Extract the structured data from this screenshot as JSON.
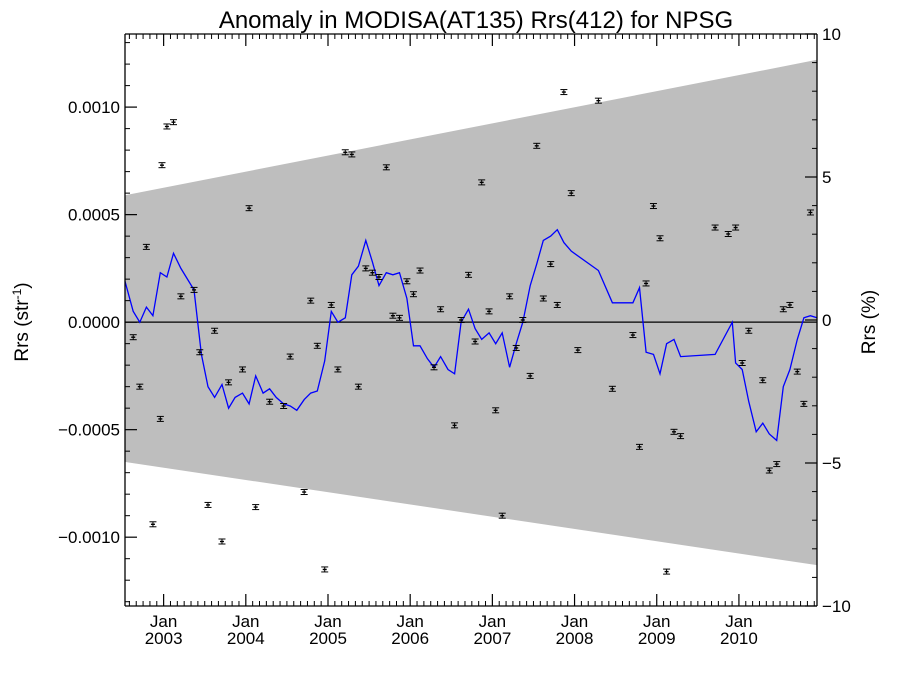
{
  "chart_data": {
    "type": "scatter",
    "title": "Anomaly in MODISA(AT135) Rrs(412) for NPSG",
    "ylabel": "Rrs (str",
    "ylabel_sup": "-1",
    "ylabel_close": ")",
    "y2label": "Rrs (%)",
    "xlim": [
      2002.53,
      2010.95
    ],
    "ylim": [
      -0.00132,
      0.00134
    ],
    "y2lim": [
      -10,
      10
    ],
    "y_ticks": [
      {
        "value": 0.001,
        "label": "0.0010"
      },
      {
        "value": 0.0005,
        "label": "0.0005"
      },
      {
        "value": 0.0,
        "label": "0.0000"
      },
      {
        "value": -0.0005,
        "label": "−0.0005"
      },
      {
        "value": -0.001,
        "label": "−0.0010"
      }
    ],
    "y2_ticks": [
      {
        "value": 10,
        "label": "10"
      },
      {
        "value": 5,
        "label": "5"
      },
      {
        "value": 0,
        "label": "0"
      },
      {
        "value": -5,
        "label": "−5"
      },
      {
        "value": -10,
        "label": "−10"
      }
    ],
    "x_ticks": [
      {
        "value": 2003.0,
        "month": "Jan",
        "year": "2003"
      },
      {
        "value": 2004.0,
        "month": "Jan",
        "year": "2004"
      },
      {
        "value": 2005.0,
        "month": "Jan",
        "year": "2005"
      },
      {
        "value": 2006.0,
        "month": "Jan",
        "year": "2006"
      },
      {
        "value": 2007.0,
        "month": "Jan",
        "year": "2007"
      },
      {
        "value": 2008.0,
        "month": "Jan",
        "year": "2008"
      },
      {
        "value": 2009.0,
        "month": "Jan",
        "year": "2009"
      },
      {
        "value": 2010.0,
        "month": "Jan",
        "year": "2010"
      }
    ],
    "band": {
      "x": [
        2002.53,
        2010.95
      ],
      "upper": [
        0.00059,
        0.00122
      ],
      "lower": [
        -0.00065,
        -0.00113
      ],
      "color": "#bebebe"
    },
    "zero_line": 0.0,
    "series": [
      {
        "kind": "points",
        "color": "#000000",
        "points": [
          [
            2002.63,
            -7e-05
          ],
          [
            2002.71,
            -0.0003
          ],
          [
            2002.79,
            0.00035
          ],
          [
            2002.87,
            -0.00094
          ],
          [
            2002.96,
            -0.00045
          ],
          [
            2002.98,
            0.00073
          ],
          [
            2003.04,
            0.00091
          ],
          [
            2003.12,
            0.00093
          ],
          [
            2003.21,
            0.00012
          ],
          [
            2003.37,
            0.00015
          ],
          [
            2003.44,
            -0.00014
          ],
          [
            2003.54,
            -0.00085
          ],
          [
            2003.62,
            -4e-05
          ],
          [
            2003.71,
            -0.00102
          ],
          [
            2003.79,
            -0.00028
          ],
          [
            2003.96,
            -0.00022
          ],
          [
            2004.04,
            0.00053
          ],
          [
            2004.12,
            -0.00086
          ],
          [
            2004.29,
            -0.00037
          ],
          [
            2004.46,
            -0.00039
          ],
          [
            2004.54,
            -0.00016
          ],
          [
            2004.71,
            -0.00079
          ],
          [
            2004.79,
            0.0001
          ],
          [
            2004.87,
            -0.00011
          ],
          [
            2004.96,
            -0.00115
          ],
          [
            2005.04,
            8e-05
          ],
          [
            2005.12,
            -0.00022
          ],
          [
            2005.21,
            0.00079
          ],
          [
            2005.29,
            0.00078
          ],
          [
            2005.37,
            -0.0003
          ],
          [
            2005.46,
            0.00025
          ],
          [
            2005.54,
            0.00023
          ],
          [
            2005.62,
            0.00021
          ],
          [
            2005.71,
            0.00072
          ],
          [
            2005.79,
            3e-05
          ],
          [
            2005.87,
            2e-05
          ],
          [
            2005.96,
            0.00019
          ],
          [
            2006.04,
            0.00013
          ],
          [
            2006.12,
            0.00024
          ],
          [
            2006.29,
            -0.00021
          ],
          [
            2006.37,
            6e-05
          ],
          [
            2006.54,
            -0.00048
          ],
          [
            2006.62,
            1e-05
          ],
          [
            2006.71,
            0.00022
          ],
          [
            2006.79,
            -9e-05
          ],
          [
            2006.87,
            0.00065
          ],
          [
            2006.96,
            5e-05
          ],
          [
            2007.04,
            -0.00041
          ],
          [
            2007.12,
            -0.0009
          ],
          [
            2007.21,
            0.00012
          ],
          [
            2007.29,
            -0.00012
          ],
          [
            2007.37,
            1e-05
          ],
          [
            2007.46,
            -0.00025
          ],
          [
            2007.54,
            0.00082
          ],
          [
            2007.62,
            0.00011
          ],
          [
            2007.71,
            0.00027
          ],
          [
            2007.79,
            8e-05
          ],
          [
            2007.87,
            0.00107
          ],
          [
            2007.96,
            0.0006
          ],
          [
            2008.04,
            -0.00013
          ],
          [
            2008.29,
            0.00103
          ],
          [
            2008.46,
            -0.00031
          ],
          [
            2008.71,
            -6e-05
          ],
          [
            2008.79,
            -0.00058
          ],
          [
            2008.87,
            0.00018
          ],
          [
            2008.96,
            0.00054
          ],
          [
            2009.04,
            0.00039
          ],
          [
            2009.12,
            -0.00116
          ],
          [
            2009.21,
            -0.00051
          ],
          [
            2009.29,
            -0.00053
          ],
          [
            2009.71,
            0.00044
          ],
          [
            2009.87,
            0.00041
          ],
          [
            2009.96,
            0.00044
          ],
          [
            2010.04,
            -0.00019
          ],
          [
            2010.12,
            -4e-05
          ],
          [
            2010.29,
            -0.00027
          ],
          [
            2010.37,
            -0.00069
          ],
          [
            2010.46,
            -0.00066
          ],
          [
            2010.54,
            6e-05
          ],
          [
            2010.62,
            8e-05
          ],
          [
            2010.71,
            -0.00023
          ],
          [
            2010.79,
            -0.00038
          ],
          [
            2010.87,
            0.00051
          ]
        ]
      },
      {
        "kind": "line",
        "color": "#0000ff",
        "points": [
          [
            2002.53,
            0.00019
          ],
          [
            2002.63,
            5e-05
          ],
          [
            2002.71,
            0.0
          ],
          [
            2002.79,
            7e-05
          ],
          [
            2002.87,
            3e-05
          ],
          [
            2002.96,
            0.00023
          ],
          [
            2003.04,
            0.00021
          ],
          [
            2003.12,
            0.00032
          ],
          [
            2003.21,
            0.00025
          ],
          [
            2003.37,
            0.00015
          ],
          [
            2003.46,
            -0.00015
          ],
          [
            2003.54,
            -0.0003
          ],
          [
            2003.62,
            -0.00035
          ],
          [
            2003.71,
            -0.00029
          ],
          [
            2003.79,
            -0.0004
          ],
          [
            2003.87,
            -0.00035
          ],
          [
            2003.96,
            -0.00033
          ],
          [
            2004.04,
            -0.00038
          ],
          [
            2004.12,
            -0.00025
          ],
          [
            2004.21,
            -0.00033
          ],
          [
            2004.29,
            -0.00031
          ],
          [
            2004.37,
            -0.00035
          ],
          [
            2004.46,
            -0.00038
          ],
          [
            2004.54,
            -0.00039
          ],
          [
            2004.62,
            -0.00041
          ],
          [
            2004.71,
            -0.00036
          ],
          [
            2004.79,
            -0.00033
          ],
          [
            2004.87,
            -0.00032
          ],
          [
            2004.96,
            -0.00018
          ],
          [
            2005.04,
            5e-05
          ],
          [
            2005.12,
            0.0
          ],
          [
            2005.21,
            2e-05
          ],
          [
            2005.29,
            0.00022
          ],
          [
            2005.37,
            0.00026
          ],
          [
            2005.46,
            0.00038
          ],
          [
            2005.54,
            0.00028
          ],
          [
            2005.62,
            0.00017
          ],
          [
            2005.71,
            0.00023
          ],
          [
            2005.79,
            0.00022
          ],
          [
            2005.87,
            0.00023
          ],
          [
            2005.96,
            0.00011
          ],
          [
            2006.04,
            -0.00011
          ],
          [
            2006.12,
            -0.00011
          ],
          [
            2006.21,
            -0.00017
          ],
          [
            2006.29,
            -0.00021
          ],
          [
            2006.37,
            -0.00016
          ],
          [
            2006.46,
            -0.00022
          ],
          [
            2006.54,
            -0.00024
          ],
          [
            2006.62,
            0.0
          ],
          [
            2006.71,
            6e-05
          ],
          [
            2006.79,
            -3e-05
          ],
          [
            2006.87,
            -8e-05
          ],
          [
            2006.96,
            -5e-05
          ],
          [
            2007.04,
            -0.0001
          ],
          [
            2007.12,
            -5e-05
          ],
          [
            2007.21,
            -0.00021
          ],
          [
            2007.29,
            -0.0001
          ],
          [
            2007.37,
            0.0
          ],
          [
            2007.46,
            0.00017
          ],
          [
            2007.54,
            0.00027
          ],
          [
            2007.62,
            0.00038
          ],
          [
            2007.71,
            0.0004
          ],
          [
            2007.79,
            0.00043
          ],
          [
            2007.87,
            0.00037
          ],
          [
            2007.96,
            0.00033
          ],
          [
            2008.29,
            0.00024
          ],
          [
            2008.46,
            9e-05
          ],
          [
            2008.71,
            9e-05
          ],
          [
            2008.79,
            0.00016
          ],
          [
            2008.87,
            -0.00014
          ],
          [
            2008.96,
            -0.00015
          ],
          [
            2009.04,
            -0.00024
          ],
          [
            2009.12,
            -0.0001
          ],
          [
            2009.21,
            -8e-05
          ],
          [
            2009.29,
            -0.00016
          ],
          [
            2009.71,
            -0.00015
          ],
          [
            2009.92,
            0.0
          ],
          [
            2009.96,
            -0.00019
          ],
          [
            2010.04,
            -0.00022
          ],
          [
            2010.12,
            -0.00037
          ],
          [
            2010.21,
            -0.00051
          ],
          [
            2010.29,
            -0.00047
          ],
          [
            2010.37,
            -0.00052
          ],
          [
            2010.46,
            -0.00055
          ],
          [
            2010.54,
            -0.0003
          ],
          [
            2010.62,
            -0.00022
          ],
          [
            2010.71,
            -8e-05
          ],
          [
            2010.79,
            2e-05
          ],
          [
            2010.87,
            3e-05
          ],
          [
            2010.95,
            2e-05
          ]
        ]
      }
    ]
  }
}
